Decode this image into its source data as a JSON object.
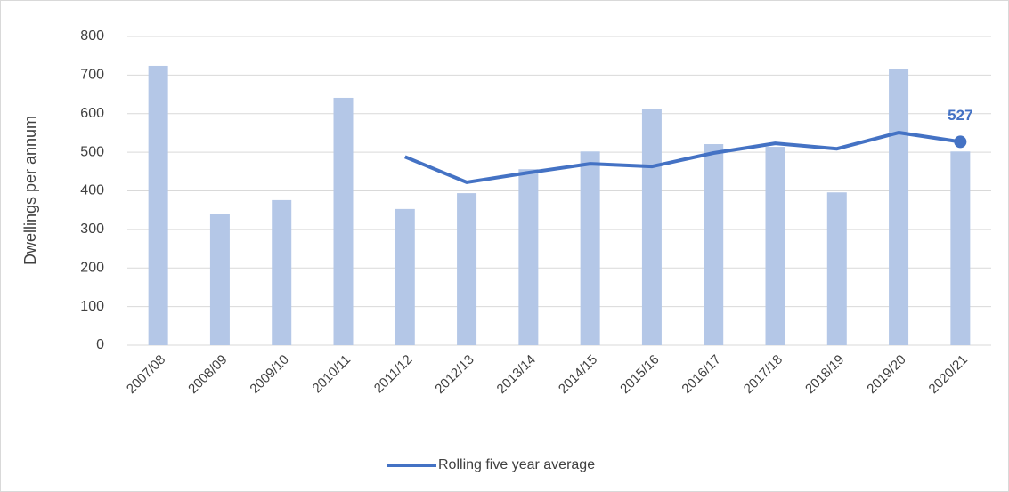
{
  "chart_data": {
    "type": "bar",
    "y_label": "Dwellings per annum",
    "categories": [
      "2007/08",
      "2008/09",
      "2009/10",
      "2010/11",
      "2011/12",
      "2012/13",
      "2013/14",
      "2014/15",
      "2015/16",
      "2016/17",
      "2017/18",
      "2018/19",
      "2019/20",
      "2020/21"
    ],
    "series": [
      {
        "type": "bar",
        "color": "#b4c7e7",
        "values": [
          724,
          339,
          376,
          641,
          353,
          394,
          456,
          502,
          611,
          521,
          514,
          396,
          717,
          502
        ]
      },
      {
        "type": "line",
        "name": "Rolling five year average",
        "color": "#4472c4",
        "values": [
          null,
          null,
          null,
          null,
          488,
          422,
          447,
          470,
          463,
          498,
          523,
          509,
          551,
          527
        ],
        "data_label": "last"
      }
    ],
    "ylim": [
      0,
      800
    ],
    "yticks": [
      0,
      100,
      200,
      300,
      400,
      500,
      600,
      700,
      800
    ],
    "grid": true,
    "legend": "bottom"
  }
}
